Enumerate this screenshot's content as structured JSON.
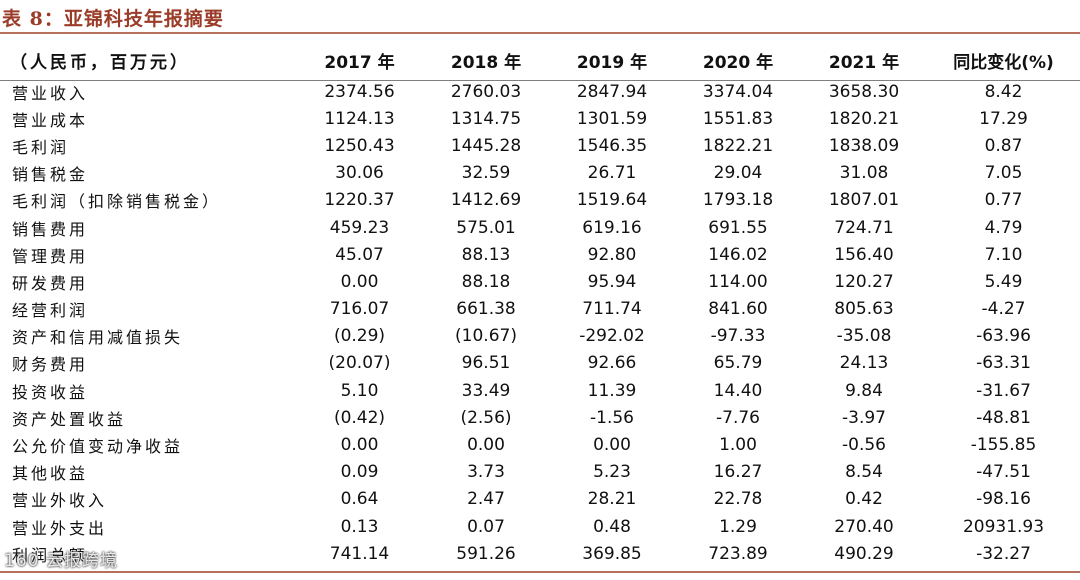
{
  "title": "表 8：亚锦科技年报摘要",
  "header": {
    "label": "（人民币，百万元）",
    "years": [
      "2017 年",
      "2018 年",
      "2019 年",
      "2020 年",
      "2021 年"
    ],
    "yoy": "同比变化(%)"
  },
  "rows": [
    {
      "label": "营业收入",
      "values": [
        "2374.56",
        "2760.03",
        "2847.94",
        "3374.04",
        "3658.30",
        "8.42"
      ]
    },
    {
      "label": "营业成本",
      "values": [
        "1124.13",
        "1314.75",
        "1301.59",
        "1551.83",
        "1820.21",
        "17.29"
      ]
    },
    {
      "label": "毛利润",
      "values": [
        "1250.43",
        "1445.28",
        "1546.35",
        "1822.21",
        "1838.09",
        "0.87"
      ]
    },
    {
      "label": "销售税金",
      "values": [
        "30.06",
        "32.59",
        "26.71",
        "29.04",
        "31.08",
        "7.05"
      ]
    },
    {
      "label": "毛利润（扣除销售税金）",
      "values": [
        "1220.37",
        "1412.69",
        "1519.64",
        "1793.18",
        "1807.01",
        "0.77"
      ]
    },
    {
      "label": "销售费用",
      "values": [
        "459.23",
        "575.01",
        "619.16",
        "691.55",
        "724.71",
        "4.79"
      ]
    },
    {
      "label": "管理费用",
      "values": [
        "45.07",
        "88.13",
        "92.80",
        "146.02",
        "156.40",
        "7.10"
      ]
    },
    {
      "label": "研发费用",
      "values": [
        "0.00",
        "88.18",
        "95.94",
        "114.00",
        "120.27",
        "5.49"
      ]
    },
    {
      "label": "经营利润",
      "values": [
        "716.07",
        "661.38",
        "711.74",
        "841.60",
        "805.63",
        "-4.27"
      ]
    },
    {
      "label": "资产和信用减值损失",
      "values": [
        "(0.29)",
        "(10.67)",
        "-292.02",
        "-97.33",
        "-35.08",
        "-63.96"
      ]
    },
    {
      "label": "财务费用",
      "values": [
        "(20.07)",
        "96.51",
        "92.66",
        "65.79",
        "24.13",
        "-63.31"
      ]
    },
    {
      "label": "投资收益",
      "values": [
        "5.10",
        "33.49",
        "11.39",
        "14.40",
        "9.84",
        "-31.67"
      ]
    },
    {
      "label": "资产处置收益",
      "values": [
        "(0.42)",
        "(2.56)",
        "-1.56",
        "-7.76",
        "-3.97",
        "-48.81"
      ]
    },
    {
      "label": "公允价值变动净收益",
      "values": [
        "0.00",
        "0.00",
        "0.00",
        "1.00",
        "-0.56",
        "-155.85"
      ]
    },
    {
      "label": "其他收益",
      "values": [
        "0.09",
        "3.73",
        "5.23",
        "16.27",
        "8.54",
        "-47.51"
      ]
    },
    {
      "label": "营业外收入",
      "values": [
        "0.64",
        "2.47",
        "28.21",
        "22.78",
        "0.42",
        "-98.16"
      ]
    },
    {
      "label": "营业外支出",
      "values": [
        "0.13",
        "0.07",
        "0.48",
        "1.29",
        "270.40",
        "20931.93"
      ]
    },
    {
      "label": "利润总额",
      "values": [
        "741.14",
        "591.26",
        "369.85",
        "723.89",
        "490.29",
        "-32.27"
      ]
    }
  ],
  "watermark": "160 云报跨境"
}
